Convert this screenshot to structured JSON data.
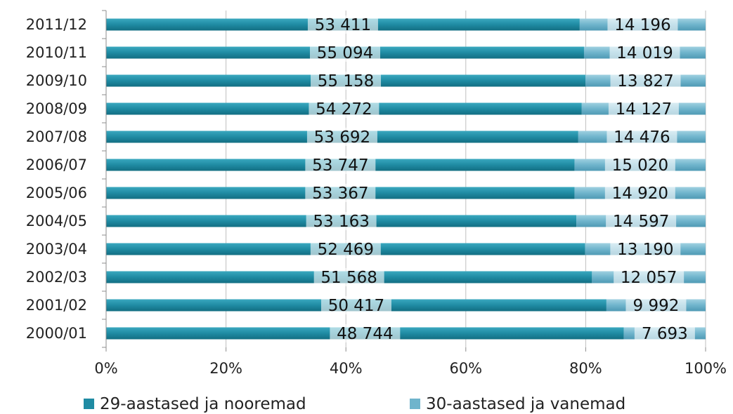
{
  "chart_data": {
    "type": "bar",
    "orientation": "horizontal",
    "stacked": "percent",
    "categories": [
      "2011/12",
      "2010/11",
      "2009/10",
      "2008/09",
      "2007/08",
      "2006/07",
      "2005/06",
      "2004/05",
      "2003/04",
      "2002/03",
      "2001/02",
      "2000/01"
    ],
    "series": [
      {
        "name": "29-aastased ja nooremad",
        "color": "#1f8ba3",
        "values": [
          53411,
          55094,
          55158,
          54272,
          53692,
          53747,
          53367,
          53163,
          52469,
          51568,
          50417,
          48744
        ],
        "labels": [
          "53 411",
          "55 094",
          "55 158",
          "54 272",
          "53 692",
          "53 747",
          "53 367",
          "53 163",
          "52 469",
          "51 568",
          "50 417",
          "48 744"
        ]
      },
      {
        "name": "30-aastased ja vanemad",
        "color": "#6fb4cc",
        "values": [
          14196,
          14019,
          13827,
          14127,
          14476,
          15020,
          14920,
          14597,
          13190,
          12057,
          9992,
          7693
        ],
        "labels": [
          "14 196",
          "14 019",
          "13 827",
          "14 127",
          "14 476",
          "15 020",
          "14 920",
          "14 597",
          "13 190",
          "12 057",
          "9 992",
          "7 693"
        ]
      }
    ],
    "x_ticks": [
      "0%",
      "20%",
      "40%",
      "60%",
      "80%",
      "100%"
    ],
    "xlim": [
      0,
      100
    ],
    "grid": true,
    "legend_position": "bottom",
    "title": "",
    "xlabel": "",
    "ylabel": ""
  }
}
